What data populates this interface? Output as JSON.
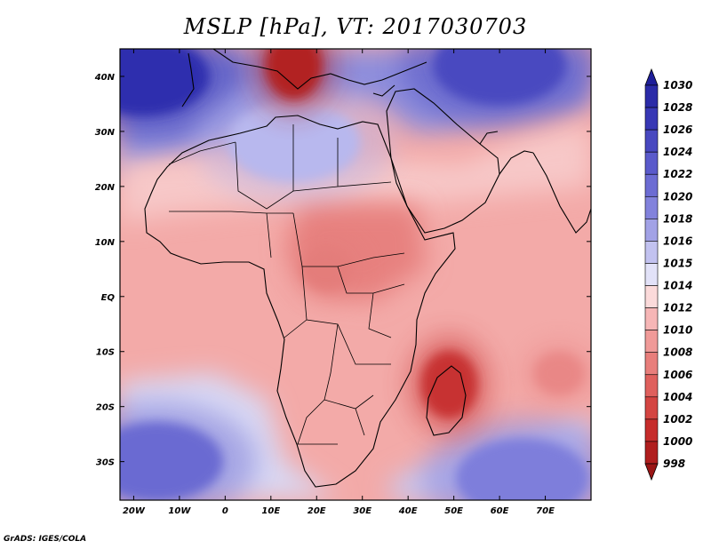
{
  "title": "MSLP [hPa], VT: 2017030703",
  "credit": "GrADS: IGES/COLA",
  "map": {
    "lon_range": [
      -23,
      80
    ],
    "lat_range": [
      -37,
      45
    ],
    "lon_ticks": [
      {
        "v": -20,
        "label": "20W"
      },
      {
        "v": -10,
        "label": "10W"
      },
      {
        "v": 0,
        "label": "0"
      },
      {
        "v": 10,
        "label": "10E"
      },
      {
        "v": 20,
        "label": "20E"
      },
      {
        "v": 30,
        "label": "30E"
      },
      {
        "v": 40,
        "label": "40E"
      },
      {
        "v": 50,
        "label": "50E"
      },
      {
        "v": 60,
        "label": "60E"
      },
      {
        "v": 70,
        "label": "70E"
      }
    ],
    "lat_ticks": [
      {
        "v": 40,
        "label": "40N"
      },
      {
        "v": 30,
        "label": "30N"
      },
      {
        "v": 20,
        "label": "20N"
      },
      {
        "v": 10,
        "label": "10N"
      },
      {
        "v": 0,
        "label": "EQ"
      },
      {
        "v": -10,
        "label": "10S"
      },
      {
        "v": -20,
        "label": "20S"
      },
      {
        "v": -30,
        "label": "30S"
      }
    ],
    "background": "#f3aaa8"
  },
  "colorbar": {
    "levels": [
      "1030",
      "1028",
      "1026",
      "1024",
      "1022",
      "1020",
      "1018",
      "1016",
      "1015",
      "1014",
      "1012",
      "1010",
      "1008",
      "1006",
      "1004",
      "1002",
      "1000",
      "998"
    ],
    "colors": [
      "#1f1f9a",
      "#2b2ba8",
      "#3838b5",
      "#4848c0",
      "#5a5acb",
      "#6c6cd3",
      "#8282dc",
      "#a2a2e6",
      "#c2c2f0",
      "#e2e2f8",
      "#fbdada",
      "#f6b6b6",
      "#f09a98",
      "#e87e7b",
      "#df605d",
      "#d44542",
      "#c62c2b",
      "#b01e1e",
      "#9a1515"
    ]
  },
  "pressure_features": [
    {
      "kind": "high",
      "value": 1028,
      "lon": -18,
      "lat": 40,
      "color": "#2f2fae"
    },
    {
      "kind": "high",
      "value": 1024,
      "lon": 60,
      "lat": 42,
      "color": "#4a4ac0"
    },
    {
      "kind": "high",
      "value": 1022,
      "lon": -15,
      "lat": -30,
      "color": "#6a6ad2"
    },
    {
      "kind": "high",
      "value": 1020,
      "lon": 65,
      "lat": -33,
      "color": "#7e7edb"
    },
    {
      "kind": "high",
      "value": 1016,
      "lon": 15,
      "lat": 28,
      "color": "#b8b8ee"
    },
    {
      "kind": "low",
      "value": 1000,
      "lon": 15,
      "lat": 42,
      "color": "#b22222"
    },
    {
      "kind": "low",
      "value": 1002,
      "lon": 49,
      "lat": -16,
      "color": "#c73030"
    },
    {
      "kind": "low",
      "value": 1008,
      "lon": 73,
      "lat": -14,
      "color": "#e98786"
    },
    {
      "kind": "low",
      "value": 1008,
      "lon": 22,
      "lat": 5,
      "color": "#e47d7a"
    }
  ]
}
